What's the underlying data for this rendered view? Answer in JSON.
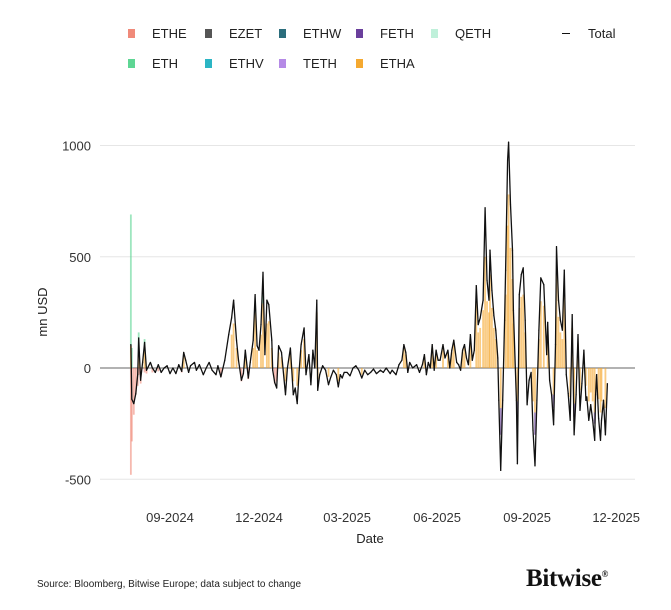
{
  "chart_data": {
    "type": "bar",
    "title": "",
    "xlabel": "Date",
    "ylabel": "mn USD",
    "ylim": [
      -500,
      1000
    ],
    "yticks": [
      "1000",
      "500",
      "0",
      "-500"
    ],
    "ytick_values": [
      1000,
      500,
      0,
      -500
    ],
    "xticks": [
      "09-2024",
      "12-2024",
      "03-2025",
      "06-2025",
      "09-2025",
      "12-2025"
    ],
    "xtick_dates": [
      "2024-09-01",
      "2024-12-01",
      "2025-03-01",
      "2025-06-01",
      "2025-09-01",
      "2025-12-01"
    ],
    "grid": true,
    "legend_position": "top",
    "legend": [
      {
        "name": "ETHE",
        "color": "#f08a7a"
      },
      {
        "name": "EZET",
        "color": "#555555"
      },
      {
        "name": "ETHW",
        "color": "#2b6d7c"
      },
      {
        "name": "FETH",
        "color": "#6a3f9c"
      },
      {
        "name": "QETH",
        "color": "#bff0da"
      },
      {
        "name": "Total",
        "color": "#111111",
        "line": true
      },
      {
        "name": "ETH",
        "color": "#5ed694"
      },
      {
        "name": "ETHV",
        "color": "#2bb5c4"
      },
      {
        "name": "TETH",
        "color": "#b58ae6"
      },
      {
        "name": "ETHA",
        "color": "#f5a930"
      }
    ],
    "total": [
      [
        "2024-07-23",
        105
      ],
      [
        "2024-07-24",
        -140
      ],
      [
        "2024-07-26",
        -160
      ],
      [
        "2024-07-28",
        -115
      ],
      [
        "2024-07-30",
        -30
      ],
      [
        "2024-07-31",
        135
      ],
      [
        "2024-08-02",
        -55
      ],
      [
        "2024-08-04",
        25
      ],
      [
        "2024-08-06",
        115
      ],
      [
        "2024-08-08",
        -10
      ],
      [
        "2024-08-12",
        25
      ],
      [
        "2024-08-14",
        0
      ],
      [
        "2024-08-17",
        -20
      ],
      [
        "2024-08-20",
        15
      ],
      [
        "2024-08-23",
        -20
      ],
      [
        "2024-08-26",
        0
      ],
      [
        "2024-08-29",
        10
      ],
      [
        "2024-09-01",
        -25
      ],
      [
        "2024-09-04",
        0
      ],
      [
        "2024-09-07",
        -25
      ],
      [
        "2024-09-10",
        15
      ],
      [
        "2024-09-13",
        -15
      ],
      [
        "2024-09-15",
        70
      ],
      [
        "2024-09-17",
        35
      ],
      [
        "2024-09-20",
        -20
      ],
      [
        "2024-09-22",
        10
      ],
      [
        "2024-09-26",
        25
      ],
      [
        "2024-09-28",
        -10
      ],
      [
        "2024-10-01",
        15
      ],
      [
        "2024-10-05",
        -30
      ],
      [
        "2024-10-08",
        0
      ],
      [
        "2024-10-11",
        25
      ],
      [
        "2024-10-14",
        -10
      ],
      [
        "2024-10-18",
        -30
      ],
      [
        "2024-10-20",
        10
      ],
      [
        "2024-10-23",
        -40
      ],
      [
        "2024-10-27",
        35
      ],
      [
        "2024-10-31",
        150
      ],
      [
        "2024-11-03",
        225
      ],
      [
        "2024-11-05",
        305
      ],
      [
        "2024-11-08",
        125
      ],
      [
        "2024-11-10",
        35
      ],
      [
        "2024-11-13",
        -55
      ],
      [
        "2024-11-15",
        -25
      ],
      [
        "2024-11-17",
        80
      ],
      [
        "2024-11-20",
        -45
      ],
      [
        "2024-11-22",
        25
      ],
      [
        "2024-11-25",
        125
      ],
      [
        "2024-11-27",
        330
      ],
      [
        "2024-11-29",
        100
      ],
      [
        "2024-12-01",
        80
      ],
      [
        "2024-12-03",
        195
      ],
      [
        "2024-12-05",
        430
      ],
      [
        "2024-12-07",
        60
      ],
      [
        "2024-12-09",
        305
      ],
      [
        "2024-12-11",
        285
      ],
      [
        "2024-12-14",
        125
      ],
      [
        "2024-12-15",
        -10
      ],
      [
        "2024-12-17",
        -65
      ],
      [
        "2024-12-19",
        -90
      ],
      [
        "2024-12-21",
        100
      ],
      [
        "2024-12-24",
        70
      ],
      [
        "2024-12-28",
        -120
      ],
      [
        "2024-12-30",
        0
      ],
      [
        "2025-01-02",
        90
      ],
      [
        "2025-01-05",
        -120
      ],
      [
        "2025-01-07",
        -90
      ],
      [
        "2025-01-09",
        -160
      ],
      [
        "2025-01-11",
        -10
      ],
      [
        "2025-01-13",
        105
      ],
      [
        "2025-01-16",
        180
      ],
      [
        "2025-01-18",
        -30
      ],
      [
        "2025-01-21",
        60
      ],
      [
        "2025-01-23",
        -75
      ],
      [
        "2025-01-25",
        80
      ],
      [
        "2025-01-27",
        0
      ],
      [
        "2025-01-29",
        305
      ],
      [
        "2025-01-30",
        -100
      ],
      [
        "2025-02-01",
        -30
      ],
      [
        "2025-02-04",
        10
      ],
      [
        "2025-02-07",
        -10
      ],
      [
        "2025-02-10",
        -75
      ],
      [
        "2025-02-12",
        -45
      ],
      [
        "2025-02-15",
        -10
      ],
      [
        "2025-02-18",
        -30
      ],
      [
        "2025-02-20",
        -85
      ],
      [
        "2025-02-22",
        -30
      ],
      [
        "2025-02-24",
        -45
      ],
      [
        "2025-02-26",
        -20
      ],
      [
        "2025-03-01",
        -20
      ],
      [
        "2025-03-04",
        -35
      ],
      [
        "2025-03-07",
        0
      ],
      [
        "2025-03-10",
        10
      ],
      [
        "2025-03-13",
        -10
      ],
      [
        "2025-03-16",
        -45
      ],
      [
        "2025-03-19",
        -10
      ],
      [
        "2025-03-22",
        -30
      ],
      [
        "2025-03-25",
        -20
      ],
      [
        "2025-03-28",
        -5
      ],
      [
        "2025-03-31",
        -25
      ],
      [
        "2025-04-04",
        -10
      ],
      [
        "2025-04-07",
        -20
      ],
      [
        "2025-04-10",
        0
      ],
      [
        "2025-04-14",
        -25
      ],
      [
        "2025-04-16",
        -10
      ],
      [
        "2025-04-20",
        -30
      ],
      [
        "2025-04-23",
        15
      ],
      [
        "2025-04-26",
        35
      ],
      [
        "2025-04-28",
        105
      ],
      [
        "2025-04-30",
        70
      ],
      [
        "2025-05-02",
        -20
      ],
      [
        "2025-05-04",
        25
      ],
      [
        "2025-05-07",
        0
      ],
      [
        "2025-05-11",
        15
      ],
      [
        "2025-05-14",
        -20
      ],
      [
        "2025-05-17",
        15
      ],
      [
        "2025-05-19",
        60
      ],
      [
        "2025-05-21",
        -30
      ],
      [
        "2025-05-23",
        25
      ],
      [
        "2025-05-25",
        0
      ],
      [
        "2025-05-27",
        105
      ],
      [
        "2025-05-29",
        -10
      ],
      [
        "2025-05-31",
        80
      ],
      [
        "2025-06-02",
        35
      ],
      [
        "2025-06-04",
        35
      ],
      [
        "2025-06-07",
        105
      ],
      [
        "2025-06-09",
        45
      ],
      [
        "2025-06-12",
        80
      ],
      [
        "2025-06-14",
        0
      ],
      [
        "2025-06-16",
        80
      ],
      [
        "2025-06-18",
        125
      ],
      [
        "2025-06-21",
        25
      ],
      [
        "2025-06-23",
        15
      ],
      [
        "2025-06-25",
        -10
      ],
      [
        "2025-06-27",
        80
      ],
      [
        "2025-06-29",
        105
      ],
      [
        "2025-07-01",
        45
      ],
      [
        "2025-07-03",
        15
      ],
      [
        "2025-07-05",
        150
      ],
      [
        "2025-07-07",
        35
      ],
      [
        "2025-07-09",
        80
      ],
      [
        "2025-07-11",
        370
      ],
      [
        "2025-07-13",
        195
      ],
      [
        "2025-07-15",
        225
      ],
      [
        "2025-07-18",
        305
      ],
      [
        "2025-07-20",
        720
      ],
      [
        "2025-07-22",
        395
      ],
      [
        "2025-07-24",
        305
      ],
      [
        "2025-07-25",
        530
      ],
      [
        "2025-07-27",
        350
      ],
      [
        "2025-07-29",
        235
      ],
      [
        "2025-07-31",
        170
      ],
      [
        "2025-08-02",
        45
      ],
      [
        "2025-08-03",
        -145
      ],
      [
        "2025-08-05",
        -460
      ],
      [
        "2025-08-07",
        -145
      ],
      [
        "2025-08-09",
        215
      ],
      [
        "2025-08-10",
        440
      ],
      [
        "2025-08-12",
        935
      ],
      [
        "2025-08-13",
        1015
      ],
      [
        "2025-08-15",
        735
      ],
      [
        "2025-08-17",
        530
      ],
      [
        "2025-08-18",
        260
      ],
      [
        "2025-08-21",
        -145
      ],
      [
        "2025-08-22",
        -430
      ],
      [
        "2025-08-24",
        330
      ],
      [
        "2025-08-26",
        420
      ],
      [
        "2025-08-28",
        450
      ],
      [
        "2025-08-30",
        215
      ],
      [
        "2025-09-01",
        -165
      ],
      [
        "2025-09-03",
        -55
      ],
      [
        "2025-09-05",
        -20
      ],
      [
        "2025-09-07",
        -280
      ],
      [
        "2025-09-09",
        -440
      ],
      [
        "2025-09-11",
        -145
      ],
      [
        "2025-09-13",
        170
      ],
      [
        "2025-09-15",
        405
      ],
      [
        "2025-09-18",
        375
      ],
      [
        "2025-09-21",
        60
      ],
      [
        "2025-09-22",
        205
      ],
      [
        "2025-09-24",
        -55
      ],
      [
        "2025-09-26",
        -120
      ],
      [
        "2025-09-28",
        -255
      ],
      [
        "2025-09-30",
        105
      ],
      [
        "2025-10-01",
        545
      ],
      [
        "2025-10-03",
        305
      ],
      [
        "2025-10-05",
        215
      ],
      [
        "2025-10-07",
        170
      ],
      [
        "2025-10-09",
        440
      ],
      [
        "2025-10-11",
        -30
      ],
      [
        "2025-10-13",
        -115
      ],
      [
        "2025-10-15",
        -235
      ],
      [
        "2025-10-17",
        240
      ],
      [
        "2025-10-19",
        -300
      ],
      [
        "2025-10-21",
        -120
      ],
      [
        "2025-10-23",
        150
      ],
      [
        "2025-10-25",
        -190
      ],
      [
        "2025-10-27",
        -70
      ],
      [
        "2025-10-29",
        80
      ],
      [
        "2025-10-31",
        -145
      ],
      [
        "2025-11-01",
        -130
      ],
      [
        "2025-11-03",
        -235
      ],
      [
        "2025-11-05",
        -165
      ],
      [
        "2025-11-07",
        -235
      ],
      [
        "2025-11-09",
        -325
      ],
      [
        "2025-11-10",
        -120
      ],
      [
        "2025-11-11",
        -30
      ],
      [
        "2025-11-13",
        -225
      ],
      [
        "2025-11-15",
        -325
      ],
      [
        "2025-11-16",
        -235
      ],
      [
        "2025-11-18",
        -145
      ],
      [
        "2025-11-20",
        -300
      ],
      [
        "2025-11-22",
        -70
      ]
    ],
    "components": {
      "ETHE": {
        "2024-07-23": -480,
        "2024-07-24": -330,
        "2024-07-26": -210,
        "2024-07-28": -120,
        "2024-07-30": -80,
        "2024-07-31": -30,
        "2024-08-02": -70,
        "2024-08-06": -20,
        "2024-08-08": -25,
        "2024-08-14": -20,
        "2024-08-20": -15,
        "2024-09-13": -20,
        "2024-10-23": -40,
        "2024-11-13": -60,
        "2024-11-20": -50,
        "2024-12-17": -70,
        "2024-12-19": -60
      },
      "ETH": {
        "2024-07-23": 590,
        "2024-07-24": 90,
        "2024-07-31": 100,
        "2024-08-06": 50,
        "2024-11-27": 30,
        "2024-12-05": 40
      },
      "FETH": {
        "2025-08-05": -120,
        "2025-08-22": -90,
        "2025-09-09": -100,
        "2025-09-28": -60,
        "2025-10-19": -60,
        "2025-11-09": -50
      },
      "ETHA": {
        "2024-07-23": 100,
        "2024-07-31": 60,
        "2024-08-06": 80,
        "2024-09-15": 50,
        "2024-11-03": 150,
        "2024-11-05": 200,
        "2024-11-08": 90,
        "2024-11-17": 60,
        "2024-11-25": 90,
        "2024-11-27": 250,
        "2024-11-29": 80,
        "2024-12-03": 150,
        "2024-12-05": 290,
        "2024-12-09": 200,
        "2024-12-11": 210,
        "2024-12-14": 90,
        "2024-12-21": 70,
        "2024-12-24": 50,
        "2024-12-28": -60,
        "2025-01-02": 60,
        "2025-01-05": -60,
        "2025-01-09": -80,
        "2025-01-13": 80,
        "2025-01-16": 130,
        "2025-01-29": 250,
        "2025-01-30": -50,
        "2025-02-10": -40,
        "2025-02-20": -60,
        "2025-03-16": -30,
        "2025-04-28": 90,
        "2025-04-30": 60,
        "2025-05-19": 50,
        "2025-05-27": 90,
        "2025-05-31": 60,
        "2025-06-07": 90,
        "2025-06-12": 70,
        "2025-06-16": 70,
        "2025-06-18": 110,
        "2025-06-27": 70,
        "2025-06-29": 90,
        "2025-07-05": 130,
        "2025-07-11": 300,
        "2025-07-13": 160,
        "2025-07-15": 180,
        "2025-07-18": 260,
        "2025-07-20": 500,
        "2025-07-22": 300,
        "2025-07-24": 250,
        "2025-07-25": 420,
        "2025-07-27": 270,
        "2025-07-29": 180,
        "2025-07-31": 130,
        "2025-08-05": -180,
        "2025-08-10": 330,
        "2025-08-12": 640,
        "2025-08-13": 780,
        "2025-08-15": 540,
        "2025-08-17": 400,
        "2025-08-18": 200,
        "2025-08-22": -150,
        "2025-08-24": 270,
        "2025-08-26": 320,
        "2025-08-28": 330,
        "2025-08-30": 160,
        "2025-09-07": -150,
        "2025-09-09": -200,
        "2025-09-13": 130,
        "2025-09-15": 300,
        "2025-09-18": 280,
        "2025-09-22": 150,
        "2025-09-28": -120,
        "2025-10-01": 420,
        "2025-10-03": 230,
        "2025-10-05": 160,
        "2025-10-07": 130,
        "2025-10-09": 330,
        "2025-10-15": -130,
        "2025-10-17": 180,
        "2025-10-19": -160,
        "2025-10-23": 110,
        "2025-10-25": -100,
        "2025-10-31": -80,
        "2025-11-03": -150,
        "2025-11-05": -110,
        "2025-11-07": -150,
        "2025-11-09": -200,
        "2025-11-13": -140,
        "2025-11-15": -200,
        "2025-11-16": -150,
        "2025-11-20": -180
      }
    }
  },
  "footer": {
    "source": "Source: Bloomberg, Bitwise Europe; data subject to change",
    "logo": "Bitwise",
    "logo_mark": "®"
  }
}
